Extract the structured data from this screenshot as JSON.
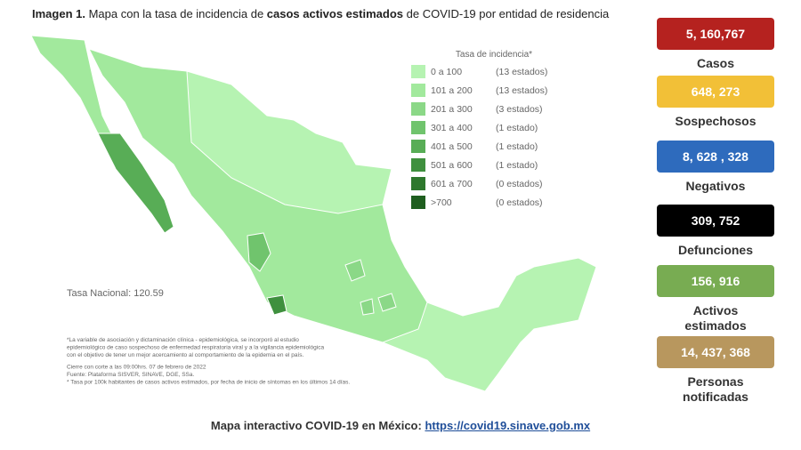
{
  "title": {
    "label": "Imagen 1.",
    "text": "Mapa con la tasa de incidencia de",
    "bold": "casos activos estimados",
    "rest": "de COVID-19 por entidad de residencia"
  },
  "legend": {
    "title": "Tasa de incidencia*",
    "items": [
      {
        "range": "0 a 100",
        "count": "(13 estados)",
        "color": "#b6f3b2"
      },
      {
        "range": "101 a 200",
        "count": "(13 estados)",
        "color": "#a2e99d"
      },
      {
        "range": "201 a 300",
        "count": "(3 estados)",
        "color": "#8bd887"
      },
      {
        "range": "301 a 400",
        "count": "(1 estado)",
        "color": "#70c46d"
      },
      {
        "range": "401 a 500",
        "count": "(1 estado)",
        "color": "#58ad56"
      },
      {
        "range": "501 a 600",
        "count": "(1 estado)",
        "color": "#3f903e"
      },
      {
        "range": "601 a 700",
        "count": "(0 estados)",
        "color": "#2e782d"
      },
      {
        "range": ">700",
        "count": "(0 estados)",
        "color": "#1f5e1f"
      }
    ]
  },
  "national_rate": "Tasa Nacional: 120.59",
  "notes": [
    "*La variable de asociación y dictaminación clínica - epidemiológica, se incorporó al estudio",
    "epidemiológico de caso sospechoso de enfermedad respiratoria viral y a la vigilancia epidemiológica",
    "con el objetivo de tener un mejor acercamiento al comportamiento de la epidemia en el país.",
    "Cierre con corte a las 09:00hrs. 07 de febrero de 2022",
    "Fuente: Plataforma SISVER, SINAVE, DGE, SSa.",
    "* Tasa por 100k habitantes de casos activos estimados, por fecha de inicio de síntomas en los últimos 14 días."
  ],
  "stats": [
    {
      "value": "5, 160,767",
      "label": "Casos",
      "color": "#b5221f"
    },
    {
      "value": "648, 273",
      "label": "Sospechosos",
      "color": "#f2c037"
    },
    {
      "value": "8, 628 , 328",
      "label": "Negativos",
      "color": "#2e6bbd"
    },
    {
      "value": "309, 752",
      "label": "Defunciones",
      "color": "#000000"
    },
    {
      "value": "156, 916",
      "label": "Activos estimados",
      "color": "#78ac52"
    },
    {
      "value": "14, 437, 368",
      "label": "Personas notificadas",
      "color": "#b8975e"
    }
  ],
  "footer": {
    "text": "Mapa interactivo COVID-19 en México:",
    "link": "https://covid19.sinave.gob.mx"
  }
}
